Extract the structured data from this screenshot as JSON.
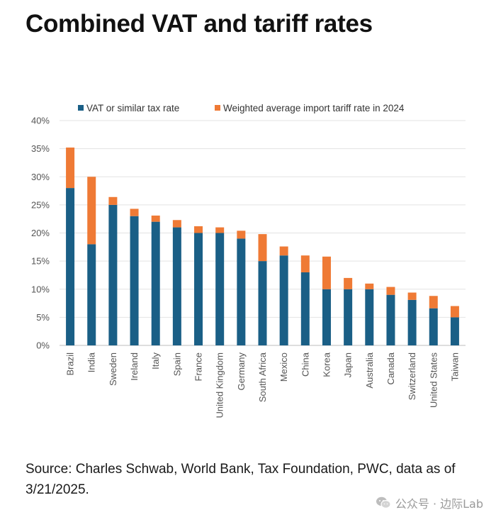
{
  "header": {
    "title": "Combined VAT and tariff rates"
  },
  "footer": {
    "source": "Source: Charles Schwab, World Bank, Tax Foundation, PWC, data as of 3/21/2025.",
    "watermark": "公众号 · 边际Lab"
  },
  "chart_data": {
    "type": "bar",
    "stacked": true,
    "categories": [
      "Brazil",
      "India",
      "Sweden",
      "Ireland",
      "Italy",
      "Spain",
      "France",
      "United Kingdom",
      "Germany",
      "South Africa",
      "Mexico",
      "China",
      "Korea",
      "Japan",
      "Australia",
      "Canada",
      "Switzerland",
      "United States",
      "Taiwan"
    ],
    "series": [
      {
        "name": "VAT or similar tax rate",
        "color": "#1a5f86",
        "values": [
          28,
          18,
          25,
          23,
          22,
          21,
          20,
          20,
          19,
          15,
          16,
          13,
          10,
          10,
          10,
          9,
          8.1,
          6.6,
          5
        ]
      },
      {
        "name": "Weighted average import tariff rate in 2024",
        "color": "#ef7a35",
        "values": [
          7.2,
          12,
          1.4,
          1.3,
          1.1,
          1.3,
          1.2,
          1,
          1.4,
          4.8,
          1.6,
          3,
          5.8,
          2,
          1,
          1.4,
          1.3,
          2.2,
          2
        ]
      }
    ],
    "yticks": [
      "0%",
      "5%",
      "10%",
      "15%",
      "20%",
      "25%",
      "30%",
      "35%",
      "40%"
    ],
    "ylim": [
      0,
      40
    ],
    "grid": true,
    "legend_position": "top"
  }
}
